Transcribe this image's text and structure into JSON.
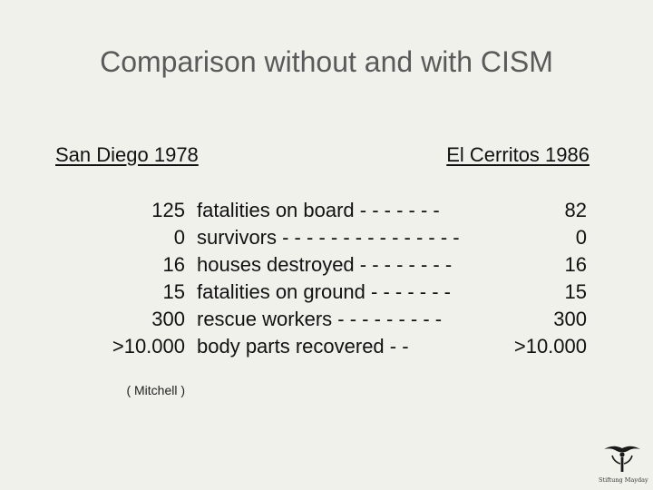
{
  "slide": {
    "title": "Comparison without and with CISM",
    "left_heading": "San Diego 1978",
    "right_heading": "El Cerritos 1986",
    "rows": [
      {
        "left": "125",
        "label": "fatalities on board - - - - - - -",
        "right": "82"
      },
      {
        "left": "0",
        "label": "survivors - - - - - - - - - - - - - - -",
        "right": "0"
      },
      {
        "left": "16",
        "label": "houses destroyed - - - - - - - -",
        "right": "16"
      },
      {
        "left": "15",
        "label": "fatalities on ground - - - - - - -",
        "right": "15"
      },
      {
        "left": "300",
        "label": "rescue workers - - - - - - - - -",
        "right": "300"
      },
      {
        "left": ">10.000",
        "label": "body parts recovered - -",
        "right": ">10.000"
      }
    ],
    "source": "( Mitchell )",
    "logo_text": "Stiftung Mayday"
  }
}
